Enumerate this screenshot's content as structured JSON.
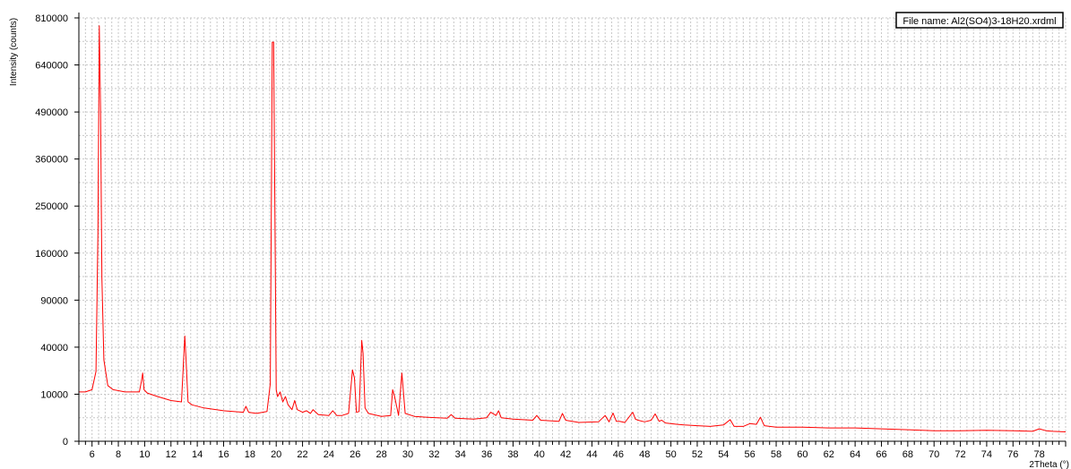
{
  "file_label": "File name: Al2(SO4)3-18H20.xrdml",
  "colors": {
    "trace": "#ff0000",
    "grid": "#c8c8c8",
    "axis": "#000000",
    "background": "#ffffff"
  },
  "chart_data": {
    "type": "line",
    "xlabel": "2Theta (°)",
    "ylabel": "Intensity (counts)",
    "x_range": [
      5.0,
      80.0
    ],
    "x_ticks": [
      6,
      8,
      10,
      12,
      14,
      16,
      18,
      20,
      22,
      24,
      26,
      28,
      30,
      32,
      34,
      36,
      38,
      40,
      42,
      44,
      46,
      48,
      50,
      52,
      54,
      56,
      58,
      60,
      62,
      64,
      66,
      68,
      70,
      72,
      74,
      76,
      78
    ],
    "y_scale": "square root",
    "y_range": [
      0,
      810000
    ],
    "y_ticks": [
      0,
      10000,
      40000,
      90000,
      160000,
      250000,
      360000,
      490000,
      640000,
      810000
    ],
    "y_tick_labels": [
      "0",
      "10000",
      "40000",
      "90000",
      "160000",
      "250000",
      "360000",
      "490000",
      "640000",
      "810000"
    ],
    "grid": true,
    "series": [
      {
        "x": [
          5.0,
          5.5,
          6.0,
          6.3,
          6.45,
          6.55,
          6.65,
          6.75,
          6.9,
          7.2,
          7.6,
          8.5,
          9.6,
          9.75,
          9.85,
          9.95,
          10.2,
          11.0,
          12.0,
          12.8,
          13.05,
          13.15,
          13.3,
          13.6,
          14.5,
          16.0,
          17.5,
          17.7,
          17.9,
          18.5,
          19.3,
          19.55,
          19.7,
          19.8,
          19.9,
          20.0,
          20.1,
          20.3,
          20.5,
          20.7,
          20.9,
          21.2,
          21.4,
          21.6,
          22.0,
          22.3,
          22.6,
          22.8,
          23.2,
          24.0,
          24.3,
          24.6,
          25.0,
          25.5,
          25.8,
          25.95,
          26.1,
          26.3,
          26.5,
          26.6,
          26.75,
          27.0,
          28.0,
          28.7,
          28.85,
          29.0,
          29.3,
          29.55,
          29.8,
          30.5,
          31.5,
          33.0,
          33.3,
          33.6,
          35.0,
          36.0,
          36.3,
          36.7,
          36.9,
          37.1,
          38.0,
          39.5,
          39.8,
          40.1,
          41.5,
          41.75,
          42.0,
          43.0,
          44.5,
          45.0,
          45.3,
          45.6,
          45.85,
          46.1,
          46.5,
          47.1,
          47.3,
          47.5,
          48.0,
          48.5,
          48.8,
          49.1,
          49.3,
          49.6,
          50.5,
          51.0,
          52.0,
          53.0,
          54.0,
          54.5,
          54.8,
          55.5,
          56.0,
          56.5,
          56.8,
          57.1,
          58.0,
          60.0,
          62.0,
          64.0,
          66.0,
          68.0,
          70.0,
          72.0,
          74.0,
          76.0,
          77.5,
          78.0,
          78.5,
          79.0,
          80.0
        ],
        "y": [
          11000,
          11000,
          12000,
          22000,
          200000,
          780000,
          500000,
          120000,
          30000,
          14000,
          12000,
          11000,
          11000,
          16000,
          21000,
          12000,
          10500,
          9000,
          7500,
          7000,
          50000,
          30000,
          7000,
          6000,
          5000,
          4200,
          3800,
          5500,
          3800,
          3500,
          4000,
          15000,
          720000,
          720000,
          250000,
          12000,
          9000,
          11000,
          7000,
          9000,
          6000,
          4500,
          7500,
          4500,
          3800,
          4200,
          3500,
          4500,
          3200,
          3000,
          4200,
          3000,
          3000,
          3500,
          23000,
          18000,
          3800,
          4000,
          46000,
          35000,
          5000,
          3500,
          2800,
          3000,
          12000,
          9000,
          3000,
          21000,
          3500,
          2800,
          2600,
          2400,
          3200,
          2400,
          2200,
          2500,
          3800,
          3000,
          4200,
          2500,
          2200,
          2000,
          3000,
          2000,
          1800,
          3500,
          2000,
          1600,
          1700,
          3000,
          1700,
          3600,
          1800,
          1800,
          1600,
          3800,
          2200,
          2000,
          1700,
          2000,
          3400,
          1800,
          2000,
          1500,
          1300,
          1200,
          1100,
          1000,
          1200,
          2100,
          1000,
          1000,
          1400,
          1300,
          2600,
          1100,
          900,
          900,
          800,
          800,
          700,
          600,
          500,
          500,
          550,
          500,
          450,
          700,
          500,
          450,
          400
        ]
      }
    ]
  }
}
